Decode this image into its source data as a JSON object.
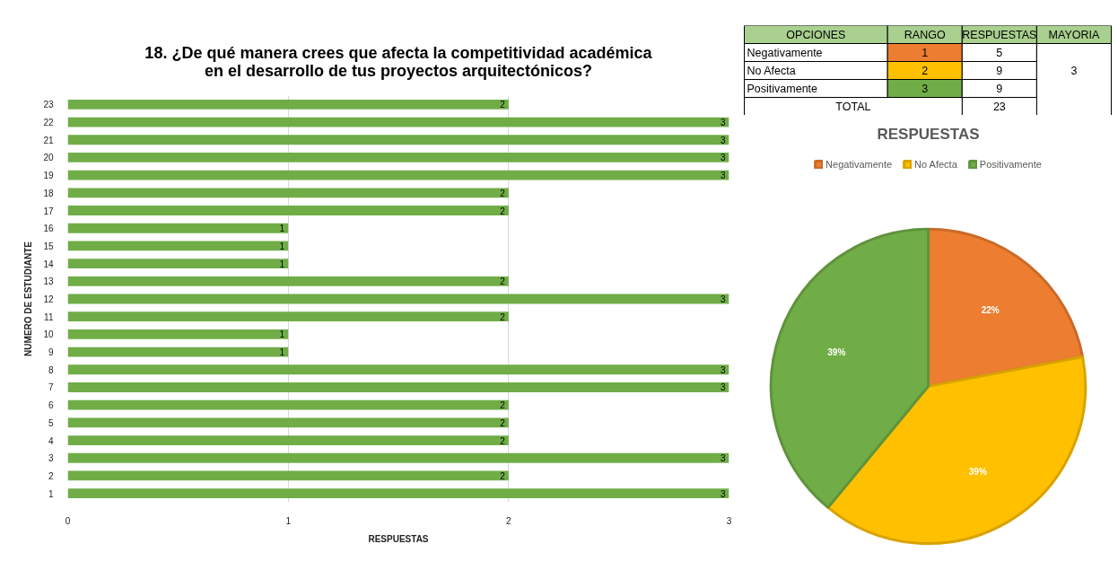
{
  "chart_data": [
    {
      "type": "bar",
      "orientation": "horizontal",
      "title": "18. ¿De qué manera crees que afecta la competitividad académica\nen el desarrollo de tus proyectos arquitectónicos?",
      "xlabel": "RESPUESTAS",
      "ylabel": "NUMERO DE ESTUDIANTE",
      "categories": [
        "23",
        "22",
        "21",
        "20",
        "19",
        "18",
        "17",
        "16",
        "15",
        "14",
        "13",
        "12",
        "11",
        "10",
        "9",
        "8",
        "7",
        "6",
        "5",
        "4",
        "3",
        "2",
        "1"
      ],
      "values": [
        2,
        3,
        3,
        3,
        3,
        2,
        2,
        1,
        1,
        1,
        2,
        3,
        2,
        1,
        1,
        3,
        3,
        2,
        2,
        2,
        3,
        2,
        3
      ],
      "color": "#70ad47",
      "xlim": [
        0,
        3
      ],
      "xticks": [
        0,
        1,
        2,
        3
      ],
      "grid": "x",
      "data_labels": true
    },
    {
      "type": "other",
      "legend_title": "OPCIONES",
      "categories": [
        "Negativamente",
        "No Afecta",
        "Positivamente"
      ],
      "series": [
        {
          "name": "RANGO",
          "values": [
            1,
            2,
            3
          ],
          "colors": [
            "#ed7d31",
            "#ffc000",
            "#70ad47"
          ]
        },
        {
          "name": "RESPUESTAS",
          "values": [
            5,
            9,
            9
          ]
        },
        {
          "name": "MAYORIA",
          "values": [
            null,
            3,
            null
          ]
        }
      ],
      "totals": [
        null,
        "23",
        null
      ],
      "annotations": [
        "TOTAL"
      ],
      "data_labels": true
    },
    {
      "type": "pie",
      "title": "RESPUESTAS",
      "categories": [
        "Negativamente",
        "No Afecta",
        "Positivamente"
      ],
      "values": [
        22,
        39,
        39
      ],
      "colors": [
        "#ed7d31",
        "#ffc000",
        "#70ad47"
      ],
      "value_labels": [
        "22%",
        "39%",
        "39%"
      ],
      "legend": "top"
    }
  ]
}
